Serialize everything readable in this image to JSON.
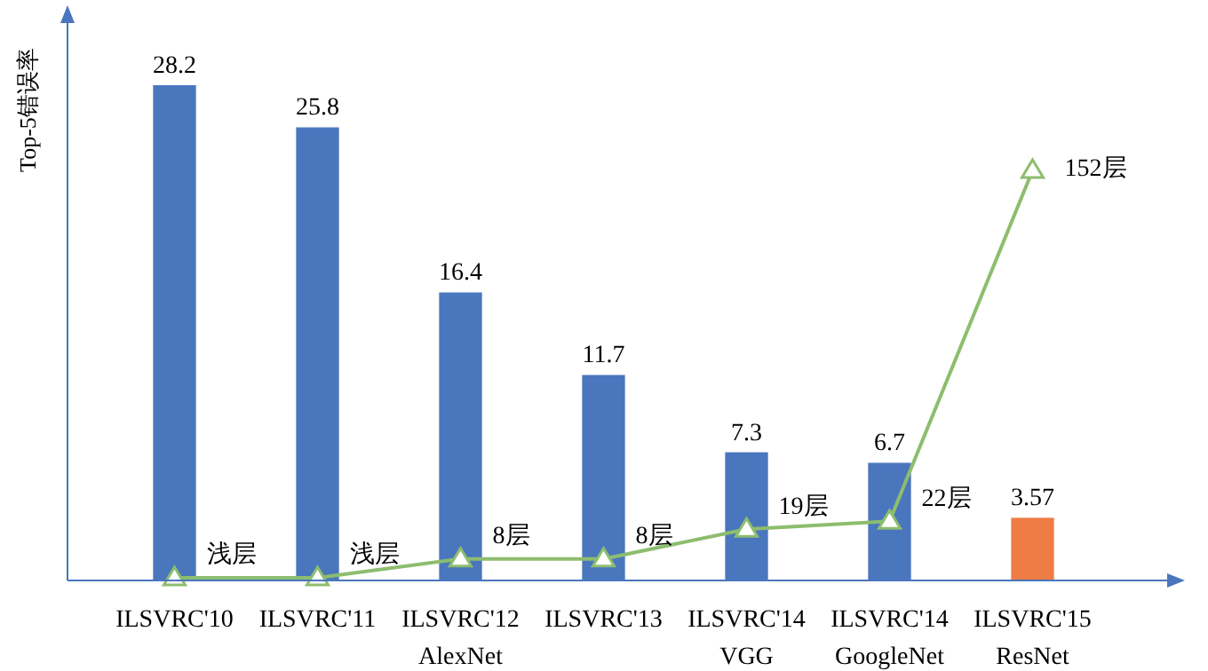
{
  "chart_data": {
    "type": "bar",
    "ylabel": "Top-5错误率",
    "categories": [
      "ILSVRC'10",
      "ILSVRC'11",
      "ILSVRC'12\nAlexNet",
      "ILSVRC'13",
      "ILSVRC'14\nVGG",
      "ILSVRC'14\nGoogleNet",
      "ILSVRC'15\nResNet"
    ],
    "tick_labels": "x",
    "data_labels": true,
    "series": [
      {
        "values": [
          28.2,
          25.8,
          16.4,
          11.7,
          7.3,
          6.7,
          3.57
        ],
        "colors": [
          "#4a76be",
          "#4a76be",
          "#4a76be",
          "#4a76be",
          "#4a76be",
          "#4a76be",
          "#ed7d45"
        ]
      },
      {
        "type": "line",
        "axis": "y2",
        "color": "#8dbd6e",
        "marker": "triangle",
        "values": [
          1,
          1,
          8,
          8,
          19,
          22,
          152
        ],
        "value_labels": [
          "浅层",
          "浅层",
          "8层",
          "8层",
          "19层",
          "22层",
          "152层"
        ]
      }
    ]
  }
}
